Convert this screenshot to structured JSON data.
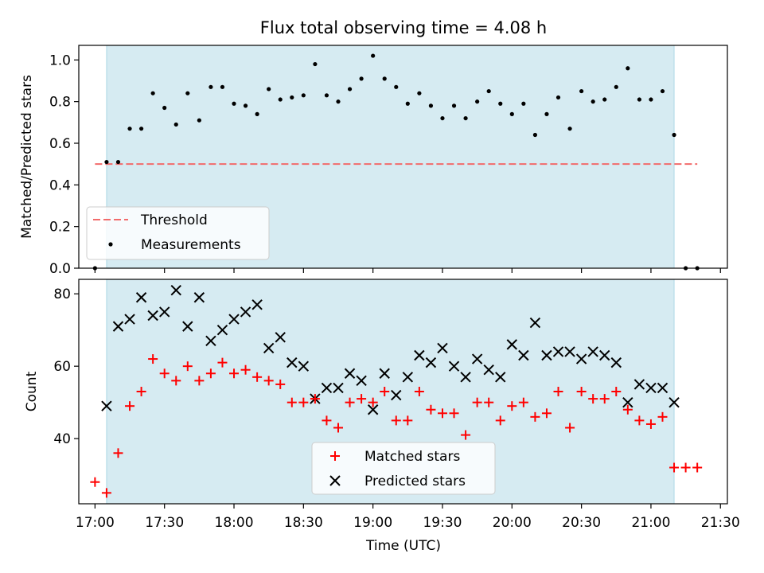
{
  "chart_data": [
    {
      "type": "scatter",
      "title": "Flux total observing time = 4.08 h",
      "ylabel": "Matched/Predicted stars",
      "xlabel": "",
      "ylim": [
        0,
        1.07
      ],
      "yticks": [
        0.0,
        0.2,
        0.4,
        0.6,
        0.8,
        1.0
      ],
      "ytick_labels": [
        "0.0",
        "0.2",
        "0.4",
        "0.6",
        "0.8",
        "1.0"
      ],
      "shaded_span": [
        "17:05",
        "21:10"
      ],
      "grid": false,
      "legend_position": "lower-left",
      "threshold": {
        "name": "Threshold",
        "value": 0.5,
        "x_range": [
          "17:00",
          "21:20"
        ],
        "color": "#f26b6b",
        "style": "dashed"
      },
      "series": [
        {
          "name": "Measurements",
          "marker": "dot",
          "color": "#000000",
          "x": [
            "17:00",
            "17:05",
            "17:10",
            "17:15",
            "17:20",
            "17:25",
            "17:30",
            "17:35",
            "17:40",
            "17:45",
            "17:50",
            "17:55",
            "18:00",
            "18:05",
            "18:10",
            "18:15",
            "18:20",
            "18:25",
            "18:30",
            "18:35",
            "18:40",
            "18:45",
            "18:50",
            "18:55",
            "19:00",
            "19:05",
            "19:10",
            "19:15",
            "19:20",
            "19:25",
            "19:30",
            "19:35",
            "19:40",
            "19:45",
            "19:50",
            "19:55",
            "20:00",
            "20:05",
            "20:10",
            "20:15",
            "20:20",
            "20:25",
            "20:30",
            "20:35",
            "20:40",
            "20:45",
            "20:50",
            "20:55",
            "21:00",
            "21:05",
            "21:10",
            "21:15",
            "21:20"
          ],
          "y": [
            0.0,
            0.51,
            0.51,
            0.67,
            0.67,
            0.84,
            0.77,
            0.69,
            0.84,
            0.71,
            0.87,
            0.87,
            0.79,
            0.78,
            0.74,
            0.86,
            0.81,
            0.82,
            0.83,
            0.98,
            0.83,
            0.8,
            0.86,
            0.91,
            1.02,
            0.91,
            0.87,
            0.79,
            0.84,
            0.78,
            0.72,
            0.78,
            0.72,
            0.8,
            0.85,
            0.79,
            0.74,
            0.79,
            0.64,
            0.74,
            0.82,
            0.67,
            0.85,
            0.8,
            0.81,
            0.87,
            0.96,
            0.81,
            0.81,
            0.85,
            0.64,
            0.0,
            0.0
          ]
        }
      ]
    },
    {
      "type": "scatter",
      "title": "",
      "ylabel": "Count",
      "xlabel": "Time (UTC)",
      "ylim": [
        22,
        84
      ],
      "yticks": [
        40,
        60,
        80
      ],
      "ytick_labels": [
        "40",
        "60",
        "80"
      ],
      "xlim": [
        "16:53",
        "21:33"
      ],
      "xticks": [
        "17:00",
        "17:30",
        "18:00",
        "18:30",
        "19:00",
        "19:30",
        "20:00",
        "20:30",
        "21:00",
        "21:30"
      ],
      "xtick_labels": [
        "17:00",
        "17:30",
        "18:00",
        "18:30",
        "19:00",
        "19:30",
        "20:00",
        "20:30",
        "21:00",
        "21:30"
      ],
      "shaded_span": [
        "17:05",
        "21:10"
      ],
      "grid": false,
      "legend_position": "lower-center",
      "series": [
        {
          "name": "Matched stars",
          "marker": "plus",
          "color": "#ff0000",
          "x": [
            "17:00",
            "17:05",
            "17:10",
            "17:15",
            "17:20",
            "17:25",
            "17:30",
            "17:35",
            "17:40",
            "17:45",
            "17:50",
            "17:55",
            "18:00",
            "18:05",
            "18:10",
            "18:15",
            "18:20",
            "18:25",
            "18:30",
            "18:35",
            "18:40",
            "18:45",
            "18:50",
            "18:55",
            "19:00",
            "19:05",
            "19:10",
            "19:15",
            "19:20",
            "19:25",
            "19:30",
            "19:35",
            "19:40",
            "19:45",
            "19:50",
            "19:55",
            "20:00",
            "20:05",
            "20:10",
            "20:15",
            "20:20",
            "20:25",
            "20:30",
            "20:35",
            "20:40",
            "20:45",
            "20:50",
            "20:55",
            "21:00",
            "21:05",
            "21:10",
            "21:15",
            "21:20"
          ],
          "y": [
            28,
            25,
            36,
            49,
            53,
            62,
            58,
            56,
            60,
            56,
            58,
            61,
            58,
            59,
            57,
            56,
            55,
            50,
            50,
            51,
            45,
            43,
            50,
            51,
            50,
            53,
            45,
            45,
            53,
            48,
            47,
            47,
            41,
            50,
            50,
            45,
            49,
            50,
            46,
            47,
            53,
            43,
            53,
            51,
            51,
            53,
            48,
            45,
            44,
            46,
            32,
            32,
            32
          ]
        },
        {
          "name": "Predicted stars",
          "marker": "x",
          "color": "#000000",
          "x": [
            "17:05",
            "17:10",
            "17:15",
            "17:20",
            "17:25",
            "17:30",
            "17:35",
            "17:40",
            "17:45",
            "17:50",
            "17:55",
            "18:00",
            "18:05",
            "18:10",
            "18:15",
            "18:20",
            "18:25",
            "18:30",
            "18:35",
            "18:40",
            "18:45",
            "18:50",
            "18:55",
            "19:00",
            "19:05",
            "19:10",
            "19:15",
            "19:20",
            "19:25",
            "19:30",
            "19:35",
            "19:40",
            "19:45",
            "19:50",
            "19:55",
            "20:00",
            "20:05",
            "20:10",
            "20:15",
            "20:20",
            "20:25",
            "20:30",
            "20:35",
            "20:40",
            "20:45",
            "20:50",
            "20:55",
            "21:00",
            "21:05",
            "21:10"
          ],
          "y": [
            49,
            71,
            73,
            79,
            74,
            75,
            81,
            71,
            79,
            67,
            70,
            73,
            75,
            77,
            65,
            68,
            61,
            60,
            51,
            54,
            54,
            58,
            56,
            48,
            58,
            52,
            57,
            63,
            61,
            65,
            60,
            57,
            62,
            59,
            57,
            66,
            63,
            72,
            63,
            64,
            64,
            62,
            64,
            63,
            61,
            50,
            55,
            54,
            54,
            50
          ]
        }
      ]
    }
  ]
}
